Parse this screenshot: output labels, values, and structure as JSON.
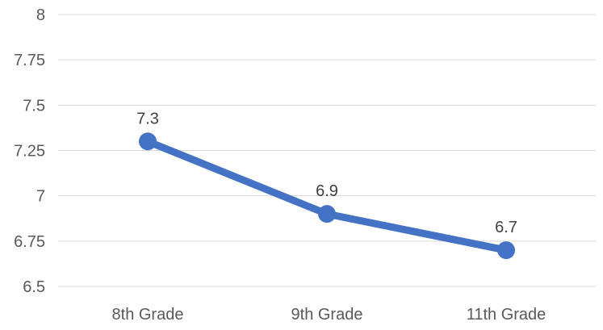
{
  "chart_data": {
    "type": "line",
    "title": "",
    "xlabel": "",
    "ylabel": "",
    "categories": [
      "8th Grade",
      "9th Grade",
      "11th Grade"
    ],
    "series": [
      {
        "values": [
          7.3,
          6.9,
          6.7
        ],
        "color": "#4472C4",
        "data_labels": [
          "7.3",
          "6.9",
          "6.7"
        ]
      }
    ],
    "ylim": [
      6.5,
      8
    ],
    "yticks": [
      6.5,
      6.75,
      7,
      7.25,
      7.5,
      7.75,
      8
    ],
    "ytick_labels": [
      "6.5",
      "6.75",
      "7",
      "7.25",
      "7.5",
      "7.75",
      "8"
    ],
    "grid": true,
    "legend": "none",
    "gridline_color": "#D9D9D9"
  }
}
